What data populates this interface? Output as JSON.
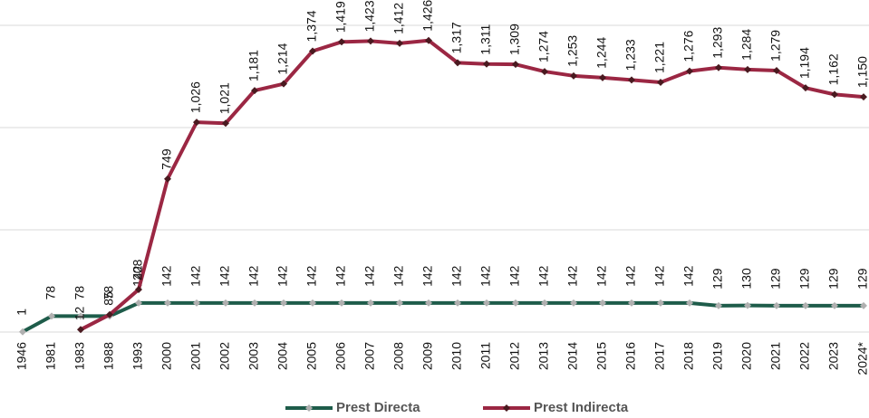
{
  "chart_data": {
    "type": "line",
    "categories": [
      "1946",
      "1981",
      "1983",
      "1988",
      "1993",
      "2000",
      "2001",
      "2002",
      "2003",
      "2004",
      "2005",
      "2006",
      "2007",
      "2008",
      "2009",
      "2010",
      "2011",
      "2012",
      "2013",
      "2014",
      "2015",
      "2016",
      "2017",
      "2018",
      "2019",
      "2020",
      "2021",
      "2022",
      "2023",
      "2024*"
    ],
    "series": [
      {
        "name": "Prest Directa",
        "color": "#1e5c4a",
        "marker_color": "#b0b0b0",
        "values": [
          1,
          78,
          78,
          78,
          142,
          142,
          142,
          142,
          142,
          142,
          142,
          142,
          142,
          142,
          142,
          142,
          142,
          142,
          142,
          142,
          142,
          142,
          142,
          142,
          129,
          130,
          129,
          129,
          129,
          129
        ]
      },
      {
        "name": "Prest Indirecta",
        "color": "#9b2743",
        "marker_color": "#4a1a20",
        "values": [
          null,
          null,
          12,
          85,
          208,
          749,
          1026,
          1021,
          1181,
          1214,
          1374,
          1419,
          1423,
          1412,
          1426,
          1317,
          1311,
          1309,
          1274,
          1253,
          1244,
          1233,
          1221,
          1276,
          1293,
          1284,
          1279,
          1194,
          1162,
          1150
        ],
        "value_labels": [
          null,
          null,
          "12",
          "85",
          "208",
          "749",
          "1,026",
          "1,021",
          "1,181",
          "1,214",
          "1,374",
          "1,419",
          "1,423",
          "1,412",
          "1,426",
          "1,317",
          "1,311",
          "1,309",
          "1,274",
          "1,253",
          "1,244",
          "1,233",
          "1,221",
          "1,276",
          "1,293",
          "1,284",
          "1,279",
          "1,194",
          "1,162",
          "1,150"
        ]
      }
    ],
    "ylim": [
      0,
      1500
    ],
    "yticks": [
      0,
      500,
      1000,
      1500
    ],
    "grid": true,
    "legend": "bottom"
  }
}
